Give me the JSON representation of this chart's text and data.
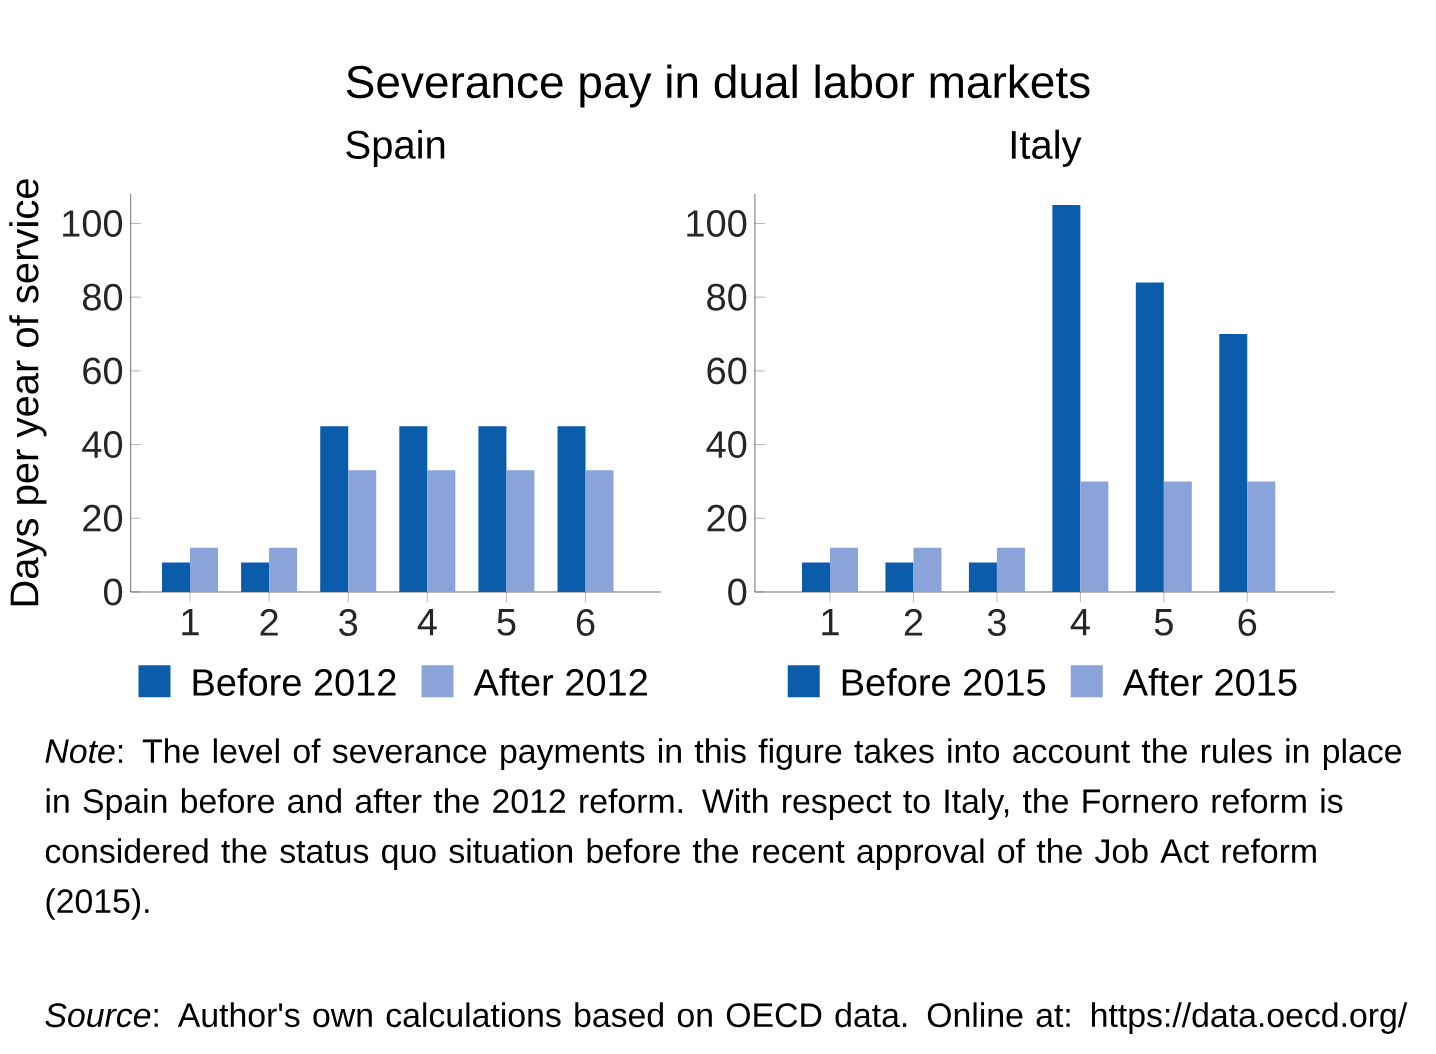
{
  "chart_data": [
    {
      "type": "other",
      "title": "Severance pay in dual labor markets",
      "annotations": [
        "*Note*: The level of severance payments in this figure takes into account the rules in place in Spain before and after the 2012 reform. With respect to Italy, the Fornero reform is considered the status quo situation before the recent approval of the Job Act reform (2015).",
        "*Source*: Author's own calculations based on OECD data. Online at: https://data.oecd.org/"
      ]
    },
    {
      "type": "bar",
      "title": "Spain",
      "ylabel": "Days per year of service",
      "categories": [
        "1",
        "2",
        "3",
        "4",
        "5",
        "6"
      ],
      "series": [
        {
          "name": "Before 2012",
          "color": "#0b5cab",
          "values": [
            8,
            8,
            45,
            45,
            45,
            45
          ]
        },
        {
          "name": "After 2012",
          "color": "#8aa3d8",
          "values": [
            12,
            12,
            33,
            33,
            33,
            33
          ]
        }
      ],
      "ylim": [
        0,
        108
      ],
      "yticks": [
        0,
        20,
        40,
        60,
        80,
        100
      ],
      "legend": "bottom"
    },
    {
      "type": "bar",
      "title": "Italy",
      "categories": [
        "1",
        "2",
        "3",
        "4",
        "5",
        "6"
      ],
      "series": [
        {
          "name": "Before 2015",
          "color": "#0b5cab",
          "values": [
            8,
            8,
            8,
            105,
            84,
            70
          ]
        },
        {
          "name": "After 2015",
          "color": "#8aa3d8",
          "values": [
            12,
            12,
            12,
            30,
            30,
            30
          ]
        }
      ],
      "ylim": [
        0,
        108
      ],
      "yticks": [
        0,
        20,
        40,
        60,
        80,
        100
      ],
      "legend": "bottom"
    }
  ]
}
